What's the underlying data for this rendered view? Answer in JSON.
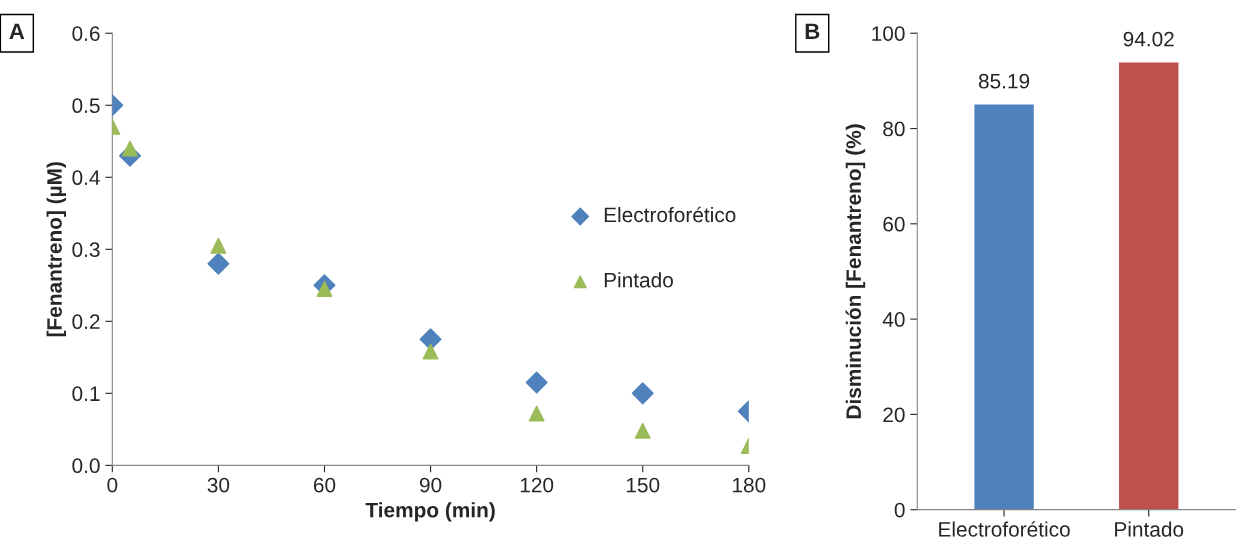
{
  "chart_data": [
    {
      "type": "scatter",
      "xlabel": "Tiempo (min)",
      "ylabel": "[Fenantreno] (µM)",
      "annotations": [
        "A"
      ],
      "xlim": [
        0,
        180
      ],
      "xticks": [
        0,
        30,
        60,
        90,
        120,
        150,
        180
      ],
      "ylim": [
        0,
        0.6
      ],
      "yticks": [
        {
          "value": 0,
          "label": "0.0"
        },
        0.1,
        0.2,
        0.3,
        0.4,
        0.5,
        0.6
      ],
      "grid": false,
      "legend": "right",
      "series": [
        {
          "name": "Electroforético",
          "color": "#4f81bd",
          "marker": "diamond",
          "x": [
            0,
            5,
            30,
            60,
            90,
            120,
            150,
            180
          ],
          "values": [
            0.5,
            0.43,
            0.28,
            0.25,
            0.175,
            0.115,
            0.1,
            0.075
          ]
        },
        {
          "name": "Pintado",
          "color": "#9bbb59",
          "marker": "triangle",
          "x": [
            0,
            5,
            30,
            60,
            90,
            120,
            150,
            180
          ],
          "values": [
            0.47,
            0.44,
            0.305,
            0.245,
            0.158,
            0.072,
            0.048,
            0.027
          ]
        }
      ]
    },
    {
      "type": "bar",
      "ylabel": "Disminución [Fenantreno] (%)",
      "annotations": [
        "B"
      ],
      "categories": [
        "Electroforético",
        "Pintado"
      ],
      "values": [
        85.19,
        94.02
      ],
      "colors": [
        "#4f81bd",
        "#c0504d"
      ],
      "ylim": [
        0,
        100
      ],
      "yticks": [
        0,
        20,
        40,
        60,
        80,
        100
      ],
      "grid": false,
      "data_labels": true
    }
  ]
}
